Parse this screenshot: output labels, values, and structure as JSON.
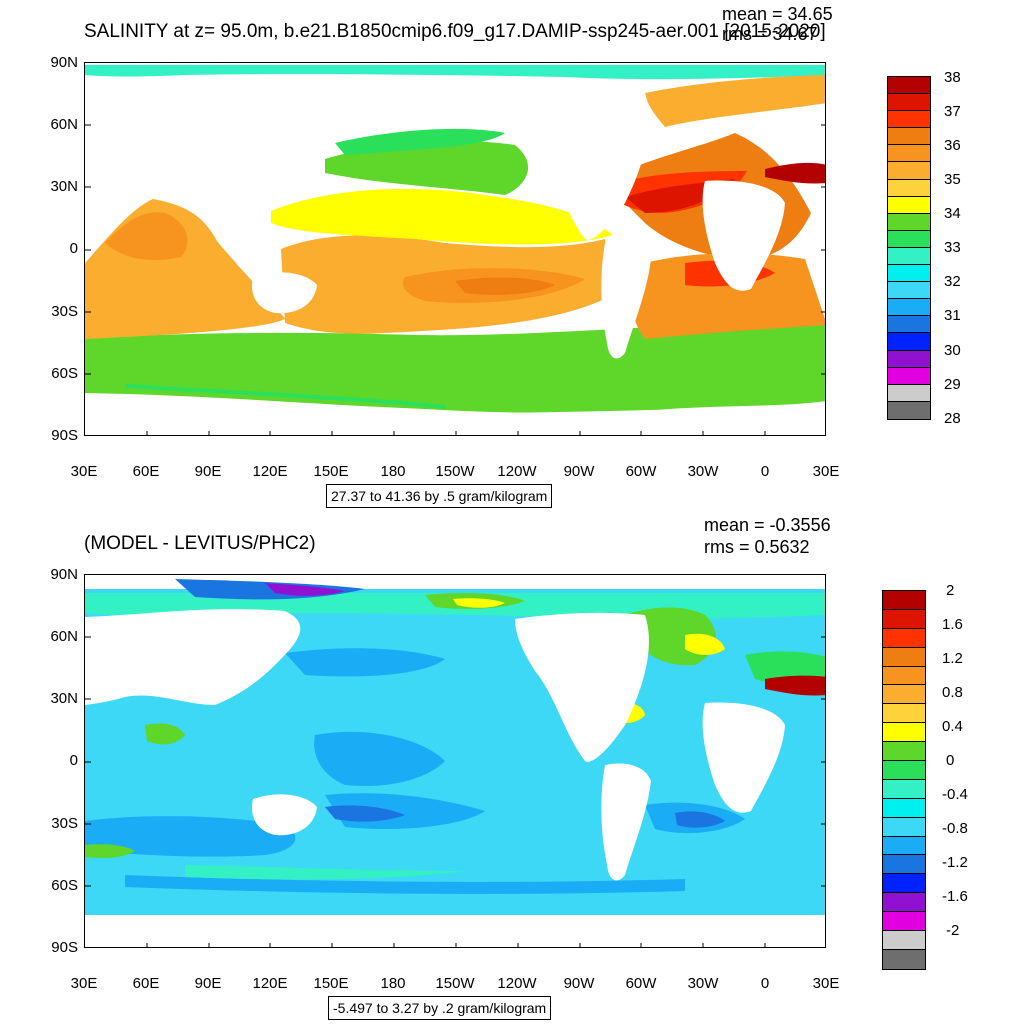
{
  "top": {
    "title": "SALINITY at z=  95.0m, b.e21.B1850cmip6.f09_g17.DAMIP-ssp245-aer.001 [2015-2020]",
    "mean": "mean = 34.65",
    "rms": "rms = 34.67",
    "range_note": "27.37 to 41.36 by .5 gram/kilogram",
    "y_ticks": [
      "90N",
      "60N",
      "30N",
      "0",
      "30S",
      "60S",
      "90S"
    ],
    "x_ticks": [
      "30E",
      "60E",
      "90E",
      "120E",
      "150E",
      "180",
      "150W",
      "120W",
      "90W",
      "60W",
      "30W",
      "0",
      "30E"
    ],
    "colorbar_labels": [
      "38",
      "37",
      "36",
      "35",
      "34",
      "33",
      "32",
      "31",
      "30",
      "29",
      "28"
    ],
    "colorbar_colors": [
      "#b30000",
      "#dd1400",
      "#ff3300",
      "#ef7e12",
      "#f7941f",
      "#fbad2f",
      "#fdd23b",
      "#ffff00",
      "#5ed62a",
      "#2ae05a",
      "#33f0c5",
      "#00f0f0",
      "#3cd8f5",
      "#1aadf5",
      "#1a75e0",
      "#0022ff",
      "#9011d0",
      "#e000e0",
      "#cccccc",
      "#6e6e6e"
    ]
  },
  "bottom": {
    "title": "(MODEL - LEVITUS/PHC2)",
    "mean": "mean = -0.3556",
    "rms": "rms = 0.5632",
    "range_note": "-5.497 to 3.27 by .2 gram/kilogram",
    "y_ticks": [
      "90N",
      "60N",
      "30N",
      "0",
      "30S",
      "60S",
      "90S"
    ],
    "x_ticks": [
      "30E",
      "60E",
      "90E",
      "120E",
      "150E",
      "180",
      "150W",
      "120W",
      "90W",
      "60W",
      "30W",
      "0",
      "30E"
    ],
    "colorbar_labels": [
      "2",
      "1.6",
      "1.2",
      "0.8",
      "0.4",
      "0",
      "-0.4",
      "-0.8",
      "-1.2",
      "-1.6",
      "-2"
    ],
    "colorbar_colors": [
      "#b30000",
      "#dd1400",
      "#ff3300",
      "#ef7e12",
      "#f7941f",
      "#fbad2f",
      "#fdd23b",
      "#ffff00",
      "#5ed62a",
      "#2ae05a",
      "#33f0c5",
      "#00f0f0",
      "#3cd8f5",
      "#1aadf5",
      "#1a75e0",
      "#0022ff",
      "#9011d0",
      "#e000e0",
      "#cccccc",
      "#6e6e6e"
    ]
  }
}
